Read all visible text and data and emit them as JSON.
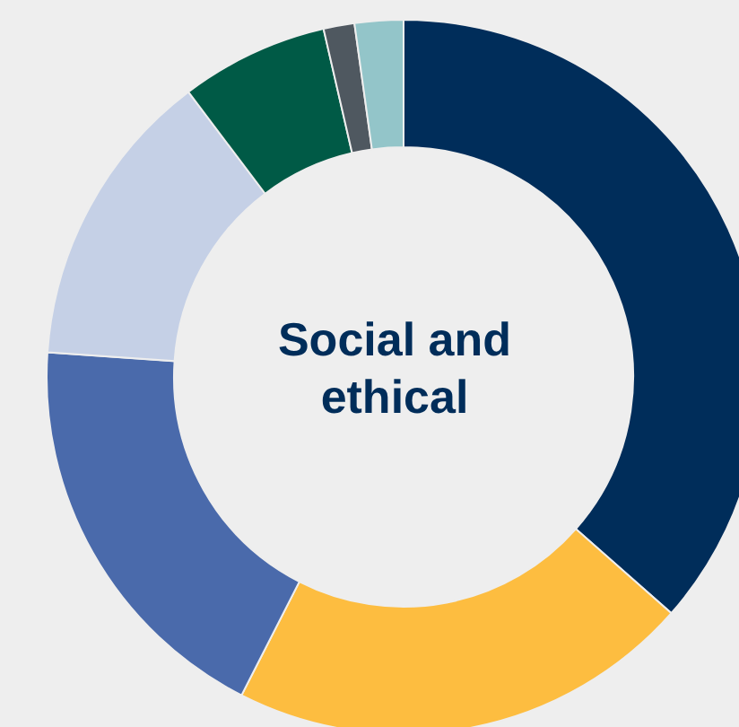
{
  "chart_data": {
    "type": "donut",
    "title": "Social and ethical",
    "categories": [
      null,
      null,
      null,
      null,
      null,
      null,
      null
    ],
    "values": [
      36.5,
      21,
      18.6,
      13.6,
      6.7,
      1.4,
      2.2
    ],
    "colors": [
      "#002d5a",
      "#fdbd40",
      "#4a6aab",
      "#c5d0e6",
      "#005a46",
      "#4f5860",
      "#93c5c9"
    ]
  }
}
